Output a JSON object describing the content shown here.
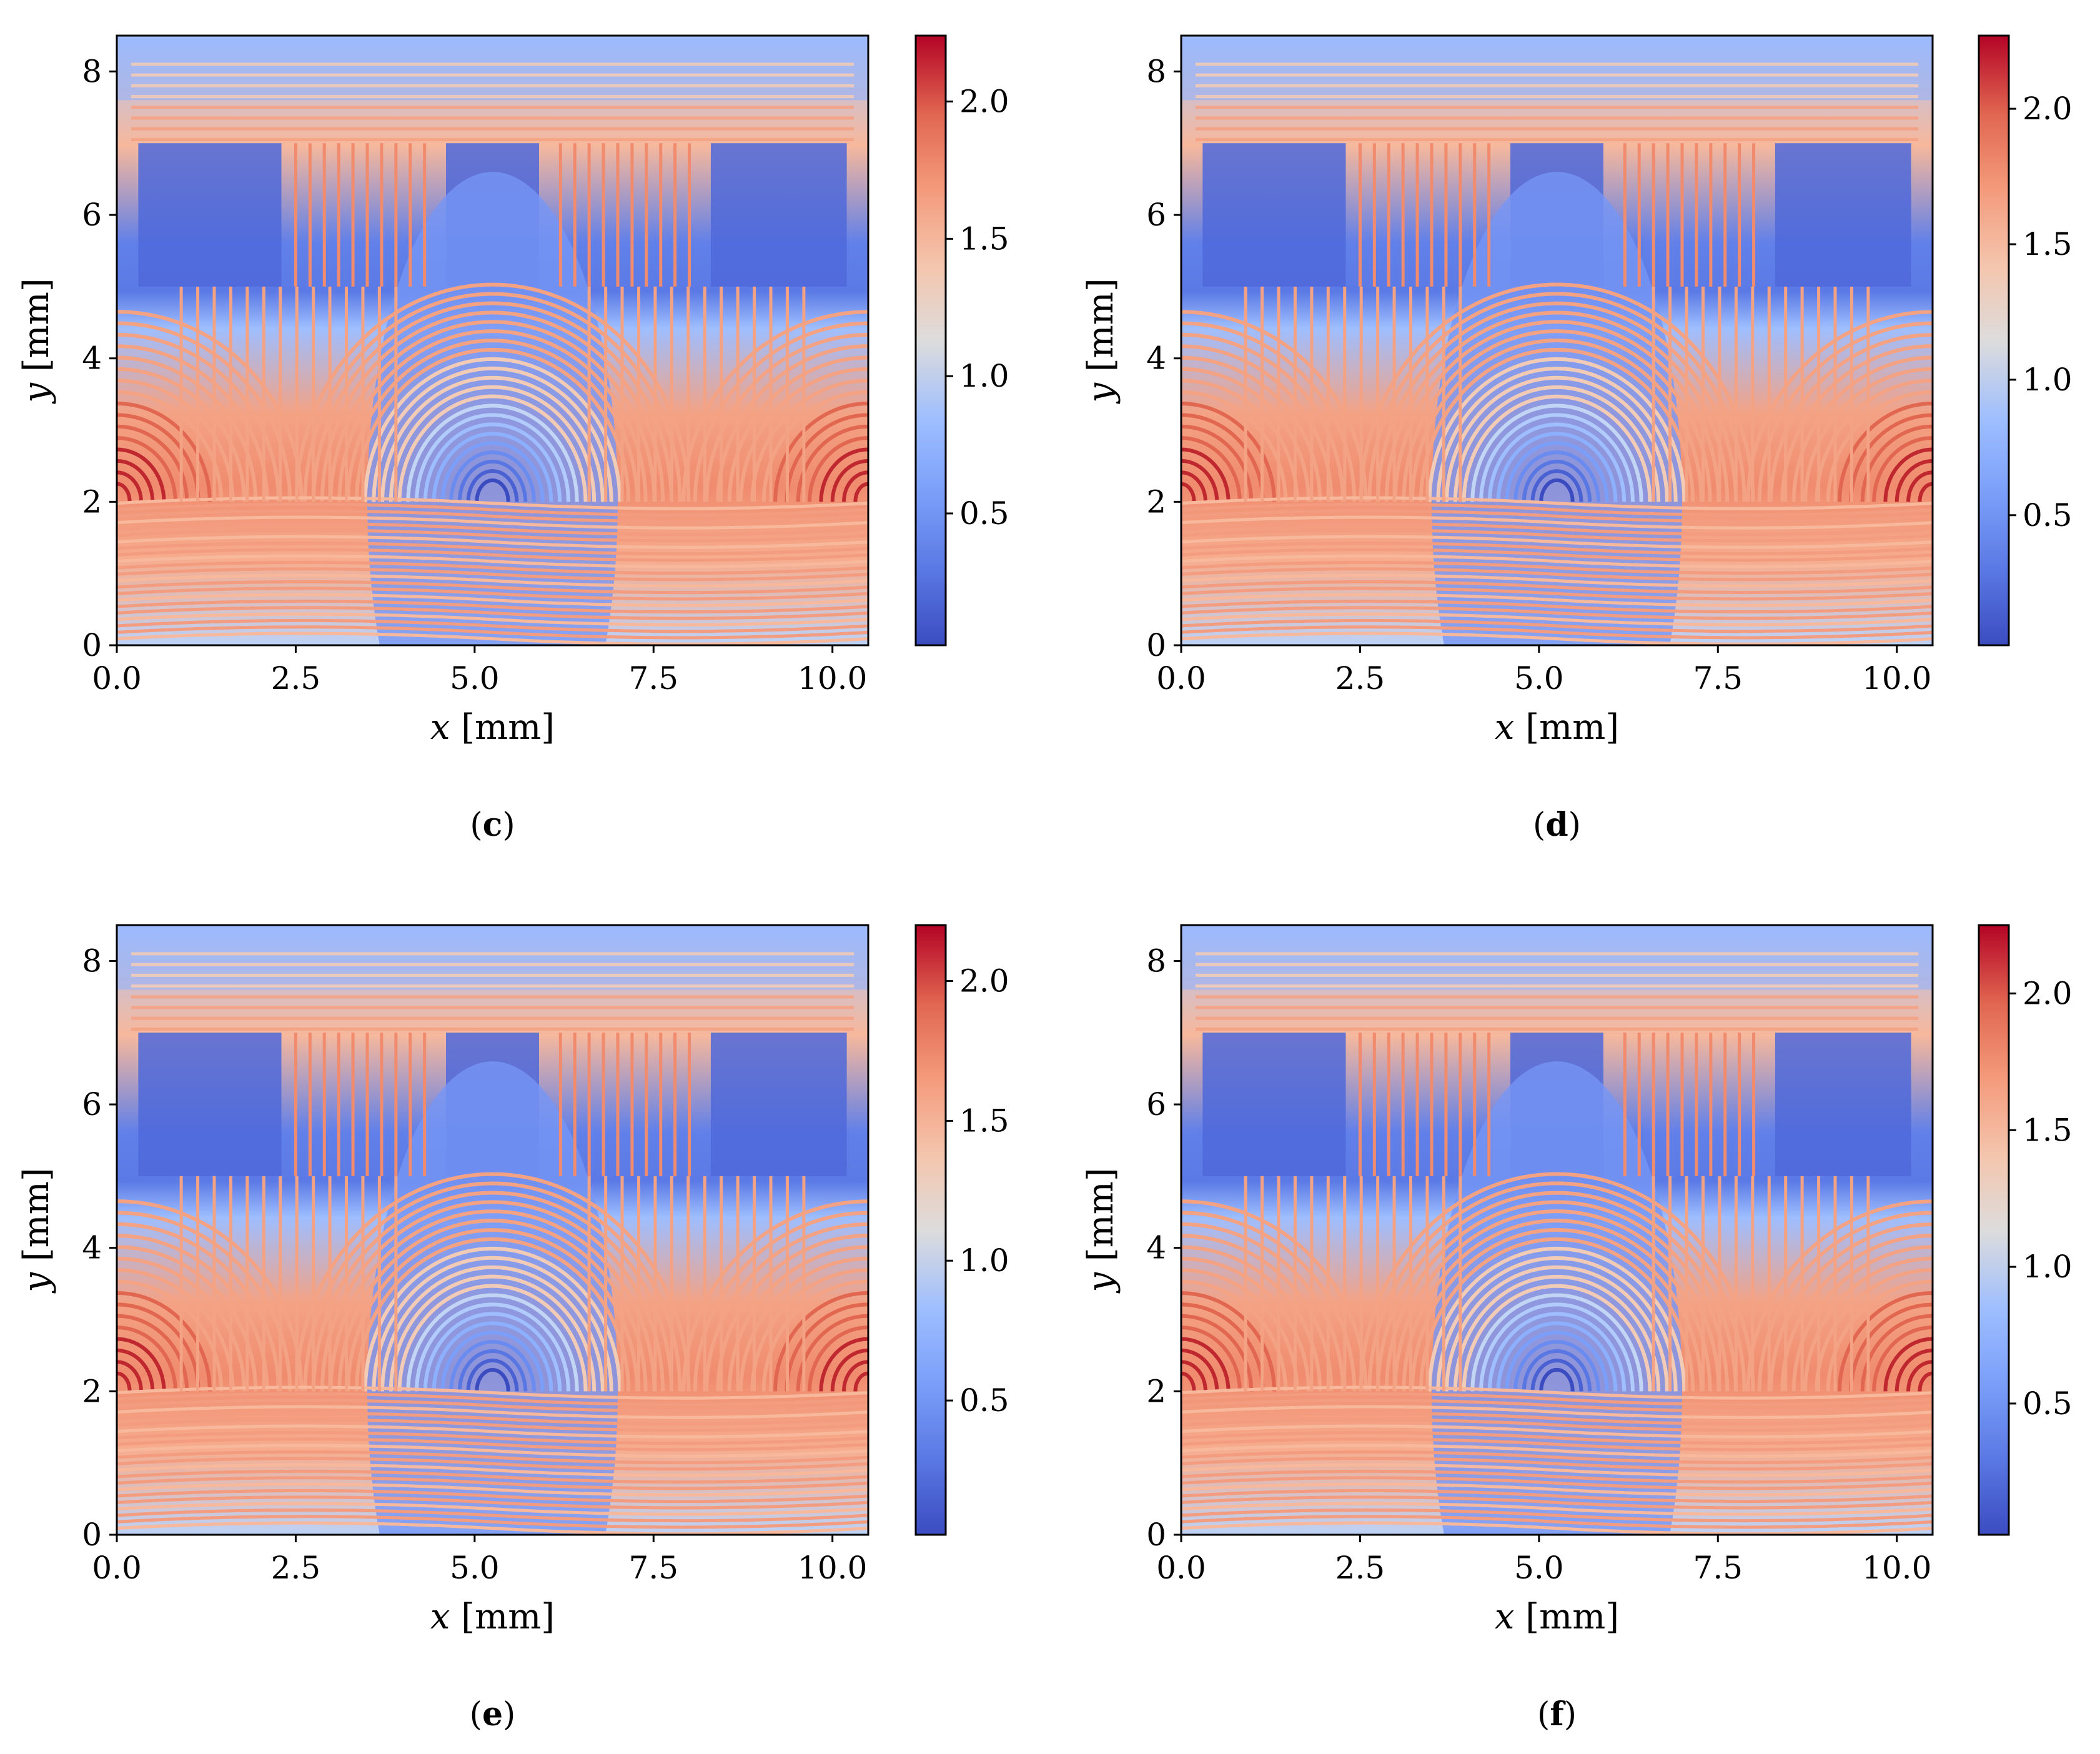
{
  "chart_data": [
    {
      "type": "heatmap",
      "panel_label": "c",
      "xlabel_var": "x",
      "xlabel_unit": "[mm]",
      "ylabel_var": "y",
      "ylabel_unit": "[mm]",
      "xlim": [
        0,
        10.5
      ],
      "ylim": [
        0,
        8.5
      ],
      "xticks": [
        0.0,
        2.5,
        5.0,
        7.5,
        10.0
      ],
      "xtick_labels": [
        "0.0",
        "2.5",
        "5.0",
        "7.5",
        "10.0"
      ],
      "yticks": [
        0,
        2,
        4,
        6,
        8
      ],
      "ytick_labels": [
        "0",
        "2",
        "4",
        "6",
        "8"
      ],
      "colorbar": {
        "min": 0.02,
        "max": 2.24,
        "ticks": [
          0.5,
          1.0,
          1.5,
          2.0
        ],
        "tick_labels": [
          "0.5",
          "1.0",
          "1.5",
          "2.0"
        ],
        "colormap": "coolwarm"
      },
      "contours": "streamlines of field, colored by magnitude"
    },
    {
      "type": "heatmap",
      "panel_label": "d",
      "xlabel_var": "x",
      "xlabel_unit": "[mm]",
      "ylabel_var": "y",
      "ylabel_unit": "[mm]",
      "xlim": [
        0,
        10.5
      ],
      "ylim": [
        0,
        8.5
      ],
      "xticks": [
        0.0,
        2.5,
        5.0,
        7.5,
        10.0
      ],
      "xtick_labels": [
        "0.0",
        "2.5",
        "5.0",
        "7.5",
        "10.0"
      ],
      "yticks": [
        0,
        2,
        4,
        6,
        8
      ],
      "ytick_labels": [
        "0",
        "2",
        "4",
        "6",
        "8"
      ],
      "colorbar": {
        "min": 0.02,
        "max": 2.27,
        "ticks": [
          0.5,
          1.0,
          1.5,
          2.0
        ],
        "tick_labels": [
          "0.5",
          "1.0",
          "1.5",
          "2.0"
        ],
        "colormap": "coolwarm"
      },
      "contours": "streamlines of field, colored by magnitude"
    },
    {
      "type": "heatmap",
      "panel_label": "e",
      "xlabel_var": "x",
      "xlabel_unit": "[mm]",
      "ylabel_var": "y",
      "ylabel_unit": "[mm]",
      "xlim": [
        0,
        10.5
      ],
      "ylim": [
        0,
        8.5
      ],
      "xticks": [
        0.0,
        2.5,
        5.0,
        7.5,
        10.0
      ],
      "xtick_labels": [
        "0.0",
        "2.5",
        "5.0",
        "7.5",
        "10.0"
      ],
      "yticks": [
        0,
        2,
        4,
        6,
        8
      ],
      "ytick_labels": [
        "0",
        "2",
        "4",
        "6",
        "8"
      ],
      "colorbar": {
        "min": 0.02,
        "max": 2.2,
        "ticks": [
          0.5,
          1.0,
          1.5,
          2.0
        ],
        "tick_labels": [
          "0.5",
          "1.0",
          "1.5",
          "2.0"
        ],
        "colormap": "coolwarm"
      },
      "contours": "streamlines of field, colored by magnitude"
    },
    {
      "type": "heatmap",
      "panel_label": "f",
      "xlabel_var": "x",
      "xlabel_unit": "[mm]",
      "ylabel_var": "y",
      "ylabel_unit": "[mm]",
      "xlim": [
        0,
        10.5
      ],
      "ylim": [
        0,
        8.5
      ],
      "xticks": [
        0.0,
        2.5,
        5.0,
        7.5,
        10.0
      ],
      "xtick_labels": [
        "0.0",
        "2.5",
        "5.0",
        "7.5",
        "10.0"
      ],
      "yticks": [
        0,
        2,
        4,
        6,
        8
      ],
      "ytick_labels": [
        "0",
        "2",
        "4",
        "6",
        "8"
      ],
      "colorbar": {
        "min": 0.02,
        "max": 2.25,
        "ticks": [
          0.5,
          1.0,
          1.5,
          2.0
        ],
        "tick_labels": [
          "0.5",
          "1.0",
          "1.5",
          "2.0"
        ],
        "colormap": "coolwarm"
      },
      "contours": "streamlines of field, colored by magnitude"
    }
  ]
}
